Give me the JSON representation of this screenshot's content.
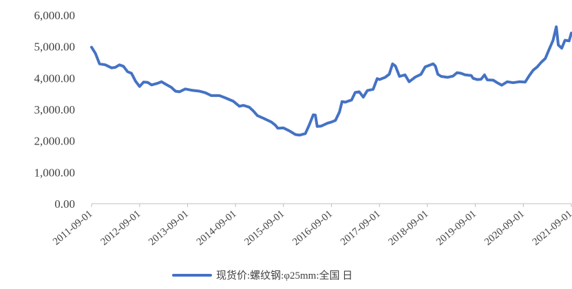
{
  "chart_data": {
    "type": "line",
    "title": "",
    "xlabel": "",
    "ylabel": "",
    "ylim": [
      0,
      6000
    ],
    "y_ticks": [
      "0.00",
      "1,000.00",
      "2,000.00",
      "3,000.00",
      "4,000.00",
      "5,000.00",
      "6,000.00"
    ],
    "x_ticks": [
      "2011-09-01",
      "2012-09-01",
      "2013-09-01",
      "2014-09-01",
      "2015-09-01",
      "2016-09-01",
      "2017-09-01",
      "2018-09-01",
      "2019-09-01",
      "2020-09-01",
      "2021-09-01"
    ],
    "x_range": [
      "2011-09-01",
      "2021-09-01"
    ],
    "grid": false,
    "legend_position": "bottom",
    "series": [
      {
        "name": "现货价:螺纹钢:φ25mm:全国 日",
        "color": "#4472C4",
        "points": [
          [
            "2011-09-01",
            4980
          ],
          [
            "2011-10-01",
            4780
          ],
          [
            "2011-11-01",
            4450
          ],
          [
            "2011-12-15",
            4420
          ],
          [
            "2012-02-01",
            4320
          ],
          [
            "2012-03-01",
            4340
          ],
          [
            "2012-04-01",
            4420
          ],
          [
            "2012-05-01",
            4370
          ],
          [
            "2012-06-01",
            4200
          ],
          [
            "2012-07-01",
            4150
          ],
          [
            "2012-08-01",
            3900
          ],
          [
            "2012-09-01",
            3730
          ],
          [
            "2012-10-01",
            3870
          ],
          [
            "2012-11-01",
            3860
          ],
          [
            "2012-12-01",
            3780
          ],
          [
            "2013-01-15",
            3830
          ],
          [
            "2013-02-15",
            3880
          ],
          [
            "2013-03-15",
            3810
          ],
          [
            "2013-05-01",
            3700
          ],
          [
            "2013-06-01",
            3580
          ],
          [
            "2013-07-01",
            3560
          ],
          [
            "2013-08-15",
            3650
          ],
          [
            "2013-10-01",
            3610
          ],
          [
            "2013-12-01",
            3580
          ],
          [
            "2014-01-15",
            3530
          ],
          [
            "2014-03-01",
            3440
          ],
          [
            "2014-05-01",
            3440
          ],
          [
            "2014-06-15",
            3370
          ],
          [
            "2014-08-15",
            3260
          ],
          [
            "2014-10-01",
            3100
          ],
          [
            "2014-11-01",
            3130
          ],
          [
            "2014-12-15",
            3070
          ],
          [
            "2015-01-15",
            2950
          ],
          [
            "2015-02-15",
            2800
          ],
          [
            "2015-04-01",
            2720
          ],
          [
            "2015-06-01",
            2600
          ],
          [
            "2015-07-01",
            2500
          ],
          [
            "2015-07-20",
            2400
          ],
          [
            "2015-09-01",
            2410
          ],
          [
            "2015-10-15",
            2320
          ],
          [
            "2015-12-01",
            2200
          ],
          [
            "2016-01-01",
            2180
          ],
          [
            "2016-02-15",
            2230
          ],
          [
            "2016-03-15",
            2500
          ],
          [
            "2016-04-15",
            2830
          ],
          [
            "2016-05-01",
            2820
          ],
          [
            "2016-05-15",
            2460
          ],
          [
            "2016-06-15",
            2470
          ],
          [
            "2016-08-01",
            2560
          ],
          [
            "2016-09-01",
            2600
          ],
          [
            "2016-10-01",
            2650
          ],
          [
            "2016-11-01",
            2920
          ],
          [
            "2016-11-20",
            3250
          ],
          [
            "2016-12-15",
            3230
          ],
          [
            "2017-02-01",
            3300
          ],
          [
            "2017-03-01",
            3540
          ],
          [
            "2017-04-01",
            3560
          ],
          [
            "2017-05-01",
            3390
          ],
          [
            "2017-06-01",
            3600
          ],
          [
            "2017-07-15",
            3640
          ],
          [
            "2017-08-15",
            3980
          ],
          [
            "2017-09-01",
            3950
          ],
          [
            "2017-10-15",
            4020
          ],
          [
            "2017-11-15",
            4120
          ],
          [
            "2017-12-10",
            4450
          ],
          [
            "2018-01-01",
            4380
          ],
          [
            "2018-02-01",
            4050
          ],
          [
            "2018-03-15",
            4100
          ],
          [
            "2018-04-15",
            3880
          ],
          [
            "2018-06-01",
            4030
          ],
          [
            "2018-07-15",
            4120
          ],
          [
            "2018-08-15",
            4350
          ],
          [
            "2018-10-15",
            4450
          ],
          [
            "2018-11-01",
            4380
          ],
          [
            "2018-11-20",
            4120
          ],
          [
            "2018-12-15",
            4050
          ],
          [
            "2019-02-01",
            4020
          ],
          [
            "2019-03-15",
            4060
          ],
          [
            "2019-04-15",
            4170
          ],
          [
            "2019-05-15",
            4150
          ],
          [
            "2019-06-15",
            4100
          ],
          [
            "2019-08-01",
            4080
          ],
          [
            "2019-08-15",
            3990
          ],
          [
            "2019-09-15",
            3950
          ],
          [
            "2019-10-15",
            3960
          ],
          [
            "2019-11-10",
            4100
          ],
          [
            "2019-12-01",
            3940
          ],
          [
            "2020-01-15",
            3930
          ],
          [
            "2020-02-15",
            3850
          ],
          [
            "2020-03-20",
            3770
          ],
          [
            "2020-05-01",
            3880
          ],
          [
            "2020-06-15",
            3850
          ],
          [
            "2020-08-01",
            3880
          ],
          [
            "2020-09-15",
            3870
          ],
          [
            "2020-10-15",
            4070
          ],
          [
            "2020-11-15",
            4250
          ],
          [
            "2020-12-15",
            4350
          ],
          [
            "2021-01-15",
            4500
          ],
          [
            "2021-02-15",
            4620
          ],
          [
            "2021-03-15",
            4900
          ],
          [
            "2021-04-15",
            5200
          ],
          [
            "2021-05-10",
            5630
          ],
          [
            "2021-05-25",
            5050
          ],
          [
            "2021-06-20",
            4950
          ],
          [
            "2021-07-15",
            5200
          ],
          [
            "2021-08-15",
            5180
          ],
          [
            "2021-09-01",
            5430
          ]
        ]
      }
    ]
  }
}
